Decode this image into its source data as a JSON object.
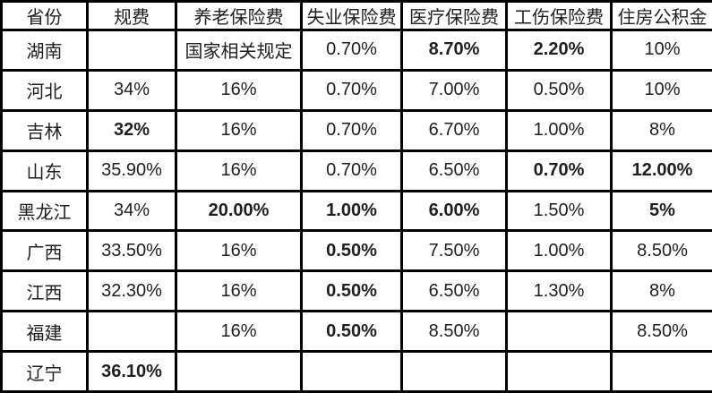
{
  "colors": {
    "red": "#e0201e",
    "green": "#27a263",
    "text": "#1f1f1f",
    "border": "#000000",
    "background": "#ffffff"
  },
  "table": {
    "columns": [
      {
        "key": "province",
        "label": "省份"
      },
      {
        "key": "fee",
        "label": "规费"
      },
      {
        "key": "pension",
        "label": "养老保险费"
      },
      {
        "key": "unemp",
        "label": "失业保险费"
      },
      {
        "key": "medical",
        "label": "医疗保险费"
      },
      {
        "key": "injury",
        "label": "工伤保险费"
      },
      {
        "key": "housing",
        "label": "住房公积金"
      }
    ],
    "rows": [
      {
        "province": "湖南",
        "cells": [
          {
            "text": "",
            "color": "default"
          },
          {
            "text": "国家相关规定",
            "color": "default"
          },
          {
            "text": "0.70%",
            "color": "default"
          },
          {
            "text": "8.70%",
            "color": "red"
          },
          {
            "text": "2.20%",
            "color": "red"
          },
          {
            "text": "10%",
            "color": "default"
          }
        ]
      },
      {
        "province": "河北",
        "cells": [
          {
            "text": "34%",
            "color": "default"
          },
          {
            "text": "16%",
            "color": "default"
          },
          {
            "text": "0.70%",
            "color": "default"
          },
          {
            "text": "7.00%",
            "color": "default"
          },
          {
            "text": "0.50%",
            "color": "default"
          },
          {
            "text": "10%",
            "color": "default"
          }
        ]
      },
      {
        "province": "吉林",
        "cells": [
          {
            "text": "32%",
            "color": "green"
          },
          {
            "text": "16%",
            "color": "default"
          },
          {
            "text": "0.70%",
            "color": "default"
          },
          {
            "text": "6.70%",
            "color": "default"
          },
          {
            "text": "1.00%",
            "color": "default"
          },
          {
            "text": "8%",
            "color": "default"
          }
        ]
      },
      {
        "province": "山东",
        "cells": [
          {
            "text": "35.90%",
            "color": "default"
          },
          {
            "text": "16%",
            "color": "default"
          },
          {
            "text": "0.70%",
            "color": "default"
          },
          {
            "text": "6.50%",
            "color": "default"
          },
          {
            "text": "0.70%",
            "color": "green"
          },
          {
            "text": "12.00%",
            "color": "red"
          }
        ]
      },
      {
        "province": "黑龙江",
        "cells": [
          {
            "text": "34%",
            "color": "default"
          },
          {
            "text": "20.00%",
            "color": "red"
          },
          {
            "text": "1.00%",
            "color": "red"
          },
          {
            "text": "6.00%",
            "color": "green"
          },
          {
            "text": "1.50%",
            "color": "default"
          },
          {
            "text": "5%",
            "color": "green"
          }
        ]
      },
      {
        "province": "广西",
        "cells": [
          {
            "text": "33.50%",
            "color": "default"
          },
          {
            "text": "16%",
            "color": "default"
          },
          {
            "text": "0.50%",
            "color": "green"
          },
          {
            "text": "7.50%",
            "color": "default"
          },
          {
            "text": "1.00%",
            "color": "default"
          },
          {
            "text": "8.50%",
            "color": "default"
          }
        ]
      },
      {
        "province": "江西",
        "cells": [
          {
            "text": "32.30%",
            "color": "default"
          },
          {
            "text": "16%",
            "color": "default"
          },
          {
            "text": "0.50%",
            "color": "green"
          },
          {
            "text": "6.50%",
            "color": "default"
          },
          {
            "text": "1.30%",
            "color": "default"
          },
          {
            "text": "8%",
            "color": "default"
          }
        ]
      },
      {
        "province": "福建",
        "cells": [
          {
            "text": "",
            "color": "default"
          },
          {
            "text": "16%",
            "color": "default"
          },
          {
            "text": "0.50%",
            "color": "green"
          },
          {
            "text": "8.50%",
            "color": "default"
          },
          {
            "text": "",
            "color": "default"
          },
          {
            "text": "8.50%",
            "color": "default"
          }
        ]
      },
      {
        "province": "辽宁",
        "cells": [
          {
            "text": "36.10%",
            "color": "red"
          },
          {
            "text": "",
            "color": "default"
          },
          {
            "text": "",
            "color": "default"
          },
          {
            "text": "",
            "color": "default"
          },
          {
            "text": "",
            "color": "default"
          },
          {
            "text": "",
            "color": "default"
          }
        ]
      }
    ]
  }
}
